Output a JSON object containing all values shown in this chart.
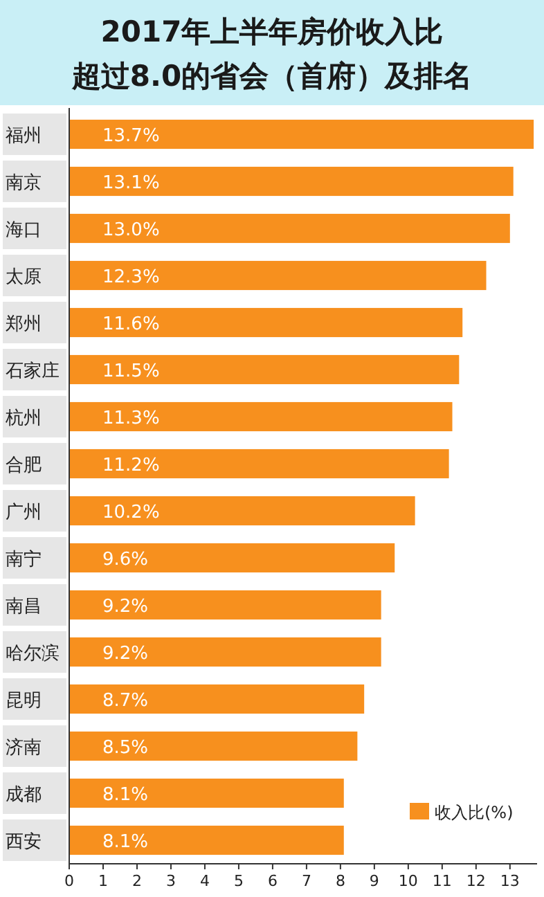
{
  "chart_data": {
    "type": "bar",
    "orientation": "horizontal",
    "title": "2017年上半年房价收入比",
    "subtitle": "超过8.0的省会（首府）及排名",
    "categories": [
      "福州",
      "南京",
      "海口",
      "太原",
      "郑州",
      "石家庄",
      "杭州",
      "合肥",
      "广州",
      "南宁",
      "南昌",
      "哈尔滨",
      "昆明",
      "济南",
      "成都",
      "西安"
    ],
    "series": [
      {
        "name": "收入比(%)",
        "color": "#f7901e",
        "values": [
          13.7,
          13.1,
          13.0,
          12.3,
          11.6,
          11.5,
          11.3,
          11.2,
          10.2,
          9.6,
          9.2,
          9.2,
          8.7,
          8.5,
          8.1,
          8.1
        ],
        "value_labels": [
          "13.7%",
          "13.1%",
          "13.0%",
          "12.3%",
          "11.6%",
          "11.5%",
          "11.3%",
          "11.2%",
          "10.2%",
          "9.6%",
          "9.2%",
          "9.2%",
          "8.7%",
          "8.5%",
          "8.1%",
          "8.1%"
        ]
      }
    ],
    "xlim": [
      0,
      13.8
    ],
    "xticks": [
      0,
      1,
      2,
      3,
      4,
      5,
      6,
      7,
      8,
      9,
      10,
      11,
      12,
      13
    ],
    "legend": "bottom right",
    "grid": false
  }
}
